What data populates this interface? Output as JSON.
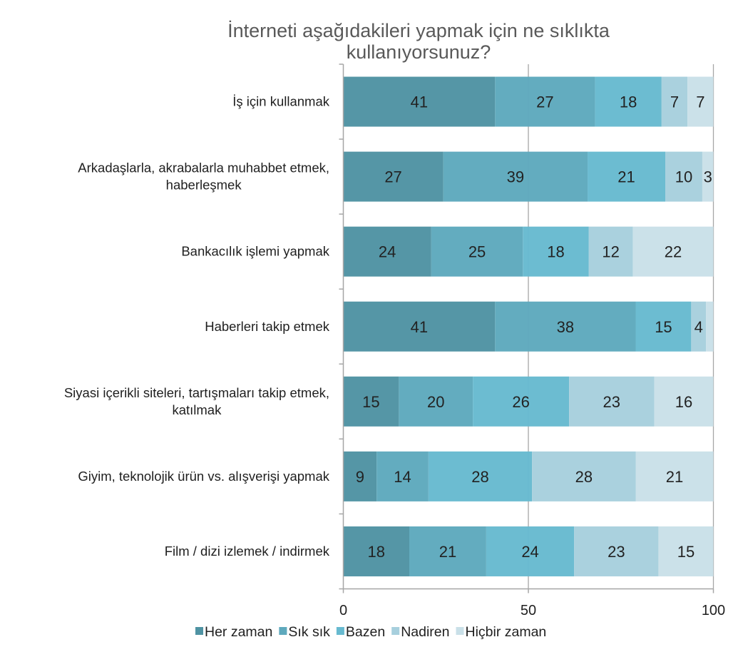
{
  "chart_data": {
    "type": "bar",
    "orientation": "horizontal",
    "stacked": true,
    "title": "İnterneti aşağıdakileri yapmak için ne sıklıkta kullanıyorsunuz?",
    "title_lines": [
      "İnterneti aşağıdakileri yapmak için ne sıklıkta",
      "kullanıyorsunuz?"
    ],
    "categories": [
      "İş için kullanmak",
      "Arkadaşlarla, akrabalarla muhabbet etmek, haberleşmek",
      "Bankacılık işlemi yapmak",
      "Haberleri takip etmek",
      "Siyasi içerikli siteleri, tartışmaları takip etmek, katılmak",
      "Giyim, teknolojik ürün vs. alışverişi yapmak",
      "Film / dizi izlemek / indirmek"
    ],
    "category_lines": [
      [
        "İş için kullanmak"
      ],
      [
        "Arkadaşlarla, akrabalarla muhabbet etmek,",
        "haberleşmek"
      ],
      [
        "Bankacılık işlemi yapmak"
      ],
      [
        "Haberleri takip etmek"
      ],
      [
        "Siyasi içerikli siteleri, tartışmaları takip etmek,",
        "katılmak"
      ],
      [
        "Giyim, teknolojik ürün vs. alışverişi yapmak"
      ],
      [
        "Film / dizi izlemek / indirmek"
      ]
    ],
    "series": [
      {
        "name": "Her zaman",
        "color": "#4f93a3",
        "values": [
          41,
          27,
          24,
          41,
          15,
          9,
          18
        ]
      },
      {
        "name": "Sık sık",
        "color": "#5ea9bd",
        "values": [
          27,
          39,
          25,
          38,
          20,
          14,
          21
        ]
      },
      {
        "name": "Bazen",
        "color": "#67bad0",
        "values": [
          18,
          21,
          18,
          15,
          26,
          28,
          24
        ]
      },
      {
        "name": "Nadiren",
        "color": "#a7cfdd",
        "values": [
          7,
          10,
          12,
          4,
          23,
          28,
          23
        ]
      },
      {
        "name": "Hiçbir zaman",
        "color": "#c9e0e8",
        "values": [
          7,
          3,
          22,
          2,
          16,
          21,
          15
        ]
      }
    ],
    "hidden_labels": [
      [
        3,
        4
      ]
    ],
    "xlim": [
      0,
      100
    ],
    "xticks": [
      0,
      50,
      100
    ],
    "xtick_labels": [
      "0",
      "50",
      "100"
    ],
    "grid": "vertical major gridlines",
    "legend": "bottom",
    "xlabel": "",
    "ylabel": ""
  }
}
